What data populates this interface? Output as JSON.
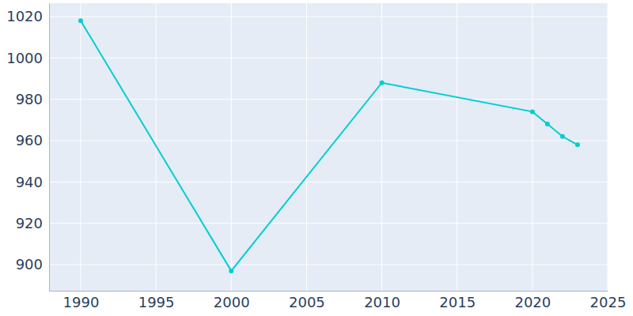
{
  "chart_data": {
    "type": "line",
    "x": [
      1990,
      2000,
      2010,
      2020,
      2021,
      2022,
      2023
    ],
    "values": [
      1018,
      897,
      988,
      974,
      968,
      962,
      958
    ],
    "color": "#00ced1",
    "marker": "circle",
    "xlim": [
      1987.9,
      2025
    ],
    "xticks": [
      1990,
      1995,
      2000,
      2005,
      2010,
      2015,
      2020,
      2025
    ],
    "ylim": [
      887.4,
      1026.5
    ],
    "yticks": [
      900,
      920,
      940,
      960,
      980,
      1000,
      1020
    ],
    "grid": true
  }
}
